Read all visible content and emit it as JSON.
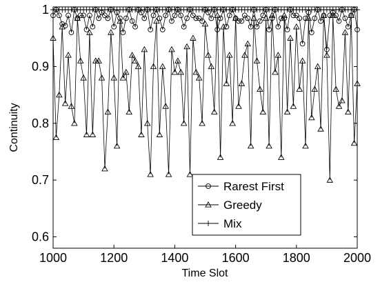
{
  "chart_data": {
    "type": "line",
    "xlabel": "Time Slot",
    "ylabel": "Continuity",
    "xlim": [
      1000,
      2000
    ],
    "ylim": [
      0.58,
      1.005
    ],
    "xticks": [
      1000,
      1200,
      1400,
      1600,
      1800,
      2000
    ],
    "xtick_labels": [
      "1000",
      "1200",
      "1400",
      "1600",
      "1800",
      "2000"
    ],
    "yticks": [
      0.6,
      0.7,
      0.8,
      0.9,
      1.0
    ],
    "ytick_labels": [
      "0.6",
      "0.7",
      "0.8",
      "0.9",
      "1"
    ],
    "grid": false,
    "legend_position": "bottom-center",
    "x": [
      1000,
      1010,
      1020,
      1030,
      1040,
      1050,
      1060,
      1070,
      1080,
      1090,
      1100,
      1110,
      1120,
      1130,
      1140,
      1150,
      1160,
      1170,
      1180,
      1190,
      1200,
      1210,
      1220,
      1230,
      1240,
      1250,
      1260,
      1270,
      1280,
      1290,
      1300,
      1310,
      1320,
      1330,
      1340,
      1350,
      1360,
      1370,
      1380,
      1390,
      1400,
      1410,
      1420,
      1430,
      1440,
      1450,
      1460,
      1470,
      1480,
      1490,
      1500,
      1510,
      1520,
      1530,
      1540,
      1550,
      1560,
      1570,
      1580,
      1590,
      1600,
      1610,
      1620,
      1630,
      1640,
      1650,
      1660,
      1670,
      1680,
      1690,
      1700,
      1710,
      1720,
      1730,
      1740,
      1750,
      1760,
      1770,
      1780,
      1790,
      1800,
      1810,
      1820,
      1830,
      1840,
      1850,
      1860,
      1870,
      1880,
      1890,
      1900,
      1910,
      1920,
      1930,
      1940,
      1950,
      1960,
      1970,
      1980,
      1990,
      2000
    ],
    "series": [
      {
        "name": "Rarest First",
        "marker": "circle",
        "values": [
          0.99,
          1.0,
          0.99,
          0.975,
          0.972,
          0.99,
          0.96,
          1.0,
          0.985,
          0.99,
          0.99,
          0.965,
          0.99,
          0.97,
          1.0,
          0.985,
          0.995,
          0.99,
          0.985,
          1.0,
          0.97,
          0.995,
          0.985,
          0.96,
          0.985,
          1.0,
          0.98,
          0.97,
          1.0,
          0.995,
          0.985,
          1.0,
          0.965,
          0.99,
          1.0,
          0.985,
          0.965,
          0.99,
          1.0,
          0.98,
          0.99,
          1.0,
          0.99,
          0.97,
          0.985,
          1.0,
          0.99,
          0.985,
          0.985,
          0.98,
          1.0,
          0.995,
          0.985,
          1.0,
          0.965,
          0.985,
          1.0,
          0.97,
          0.99,
          1.0,
          0.985,
          0.98,
          0.98,
          0.99,
          0.985,
          0.97,
          1.0,
          0.97,
          0.98,
          0.99,
          1.0,
          0.965,
          0.985,
          1.0,
          0.97,
          0.985,
          0.985,
          0.965,
          1.0,
          0.99,
          0.99,
          0.985,
          0.94,
          0.985,
          0.995,
          0.96,
          0.985,
          1.0,
          0.98,
          0.99,
          0.93,
          0.99,
          0.995,
          0.99,
          0.98,
          1.0,
          0.985,
          0.97,
          0.99,
          1.0,
          0.965
        ]
      },
      {
        "name": "Greedy",
        "marker": "triangle",
        "values": [
          0.95,
          0.775,
          0.85,
          0.97,
          0.835,
          0.92,
          0.83,
          0.8,
          0.985,
          0.91,
          0.88,
          0.78,
          0.96,
          0.78,
          0.91,
          0.91,
          0.88,
          0.72,
          0.82,
          0.96,
          0.88,
          0.76,
          0.98,
          0.88,
          0.89,
          0.82,
          0.92,
          0.91,
          0.9,
          0.78,
          0.93,
          0.8,
          0.71,
          0.9,
          0.98,
          0.78,
          0.9,
          0.83,
          0.71,
          0.93,
          0.89,
          0.91,
          0.89,
          0.8,
          0.935,
          0.71,
          0.95,
          0.89,
          0.88,
          0.8,
          0.975,
          0.92,
          0.9,
          0.82,
          0.99,
          0.74,
          0.97,
          0.87,
          0.92,
          0.8,
          0.985,
          0.83,
          0.87,
          0.92,
          0.94,
          0.76,
          0.985,
          0.91,
          0.86,
          0.82,
          0.985,
          0.76,
          0.99,
          0.89,
          0.92,
          0.74,
          0.99,
          0.82,
          0.95,
          0.83,
          0.97,
          0.86,
          0.91,
          0.76,
          0.985,
          0.81,
          0.86,
          0.9,
          0.79,
          0.99,
          0.92,
          0.7,
          0.99,
          0.86,
          0.83,
          0.84,
          0.96,
          0.82,
          0.99,
          0.765,
          0.87
        ]
      },
      {
        "name": "Mix",
        "marker": "plus",
        "values": [
          1,
          1,
          1,
          1,
          1,
          1,
          1,
          1,
          1,
          1,
          1,
          1,
          1,
          1,
          1,
          1,
          1,
          1,
          1,
          1,
          1,
          1,
          1,
          1,
          1,
          1,
          1,
          1,
          1,
          1,
          1,
          1,
          1,
          1,
          1,
          1,
          1,
          1,
          1,
          1,
          1,
          1,
          1,
          1,
          1,
          1,
          1,
          1,
          1,
          1,
          1,
          1,
          1,
          1,
          1,
          1,
          1,
          1,
          1,
          1,
          1,
          1,
          1,
          1,
          1,
          1,
          1,
          1,
          1,
          1,
          1,
          1,
          1,
          1,
          1,
          1,
          1,
          1,
          1,
          1,
          1,
          1,
          1,
          1,
          1,
          1,
          1,
          1,
          1,
          1,
          1,
          1,
          1,
          1,
          1,
          1,
          1,
          1,
          1,
          1,
          1
        ]
      }
    ]
  }
}
